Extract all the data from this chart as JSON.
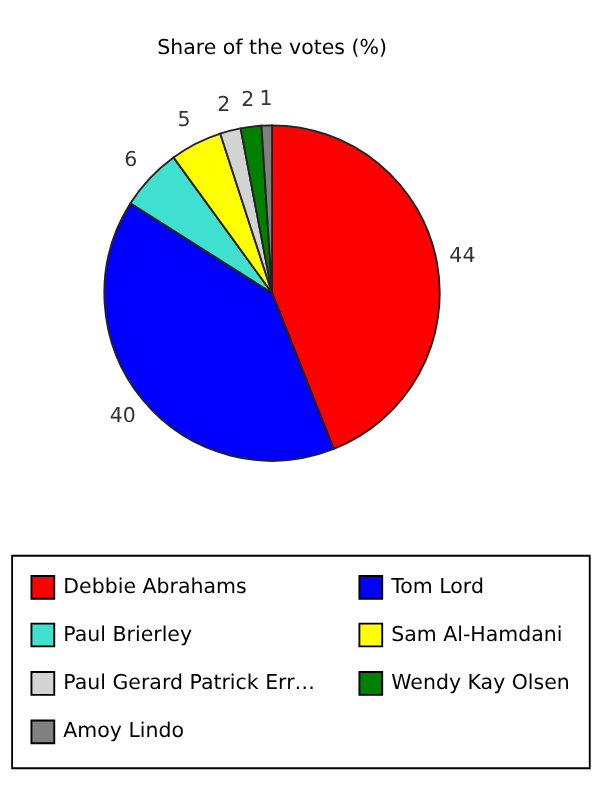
{
  "chart_data": {
    "type": "pie",
    "title": "Share of the votes (%)",
    "categories": [
      "Debbie Abrahams",
      "Tom Lord",
      "Paul Brierley",
      "Sam Al-Hamdani",
      "Paul Gerard Patrick Err…",
      "Wendy Kay Olsen",
      "Amoy Lindo"
    ],
    "values": [
      44,
      40,
      6,
      5,
      2,
      2,
      1
    ],
    "colors": [
      "#ff0000",
      "#0000ff",
      "#40e0d0",
      "#ffff00",
      "#d3d3d3",
      "#008000",
      "#808080"
    ],
    "data_labels": true,
    "legend": "bottom"
  }
}
